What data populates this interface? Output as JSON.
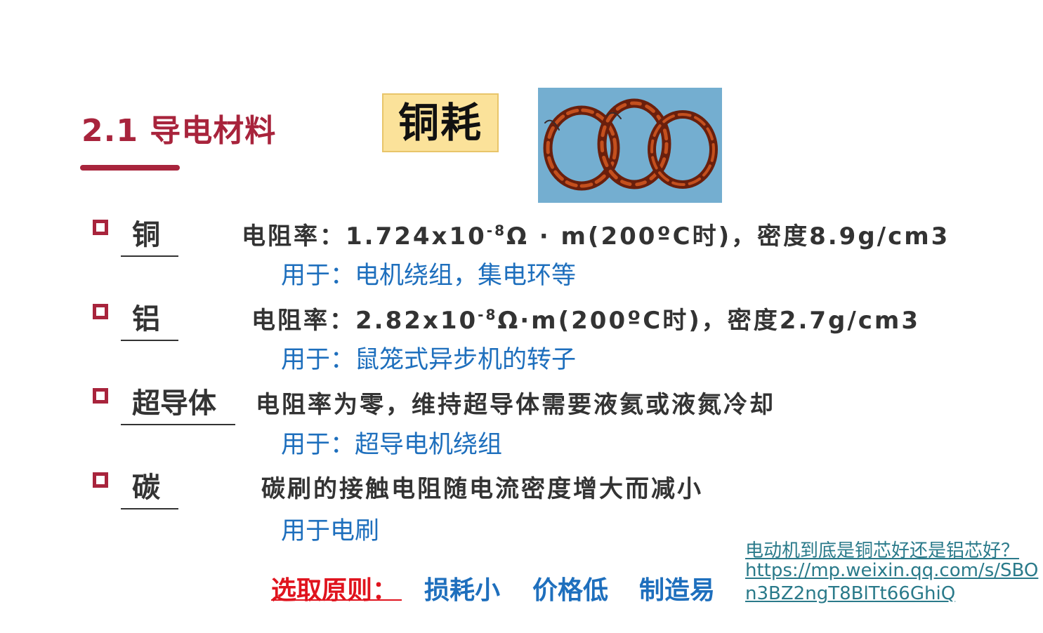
{
  "heading": {
    "title": "2.1 导电材料",
    "badge": "铜耗"
  },
  "materials": [
    {
      "name": "铜",
      "property": "电阻率：1.724x10-8Ω · m(200ºC时)，密度8.9g/cm3",
      "prop_main": "电阻率：1.724x10",
      "prop_sup": "-8",
      "prop_rest": "Ω · m(200ºC时)，密度8.9g/cm3",
      "usage": "用于：电机绕组，集电环等"
    },
    {
      "name": "铝",
      "property": "电阻率：2.82x10-8Ω·m(200ºC时)，密度2.7g/cm3",
      "prop_main": "电阻率：2.82x10",
      "prop_sup": "-8",
      "prop_rest": "Ω·m(200ºC时)，密度2.7g/cm3",
      "usage": "用于：鼠笼式异步机的转子"
    },
    {
      "name": "超导体",
      "property": "电阻率为零，维持超导体需要液氦或液氮冷却",
      "usage": "用于：超导电机绕组"
    },
    {
      "name": "碳",
      "property": "碳刷的接触电阻随电流密度增大而减小",
      "usage": "用于电刷"
    }
  ],
  "principle": {
    "label": "选取原则：",
    "items": [
      "损耗小",
      "价格低",
      "制造易"
    ]
  },
  "link": {
    "lines": [
      "电动机到底是铜芯好还是铝芯好？",
      "https://mp.weixin.qq.com/s/SBO",
      "n3BZ2ngT8BlTt66GhiQ"
    ]
  },
  "colors": {
    "accent": "#a8243c",
    "use_blue": "#1e6fbd",
    "principle_red": "#e0141e",
    "badge_bg": "#fbe29a",
    "photo_bg": "#74aed0"
  }
}
